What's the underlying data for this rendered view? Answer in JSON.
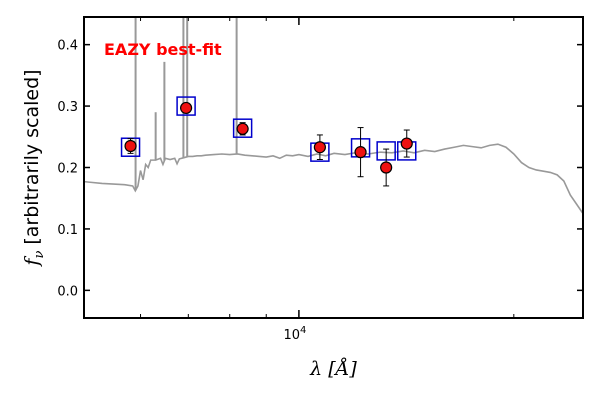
{
  "chart_data": {
    "type": "scatter",
    "title": "",
    "xlabel": "λ [Å]",
    "ylabel_symbol": "f",
    "ylabel_subscript": "ν",
    "ylabel_text": "[arbitrarily scaled]",
    "xscale": "log",
    "xlim": [
      5000,
      25000
    ],
    "ylim": [
      -0.045,
      0.445
    ],
    "yticks": [
      0.0,
      0.1,
      0.2,
      0.3,
      0.4
    ],
    "ytick_labels": [
      "0.0",
      "0.1",
      "0.2",
      "0.3",
      "0.4"
    ],
    "xticks_major": [
      10000
    ],
    "xtick_major_base": "10",
    "xtick_major_exp": "4",
    "legend_text": "EAZY best-fit",
    "legend_color": "#ff0000",
    "legend_placement": "top-left",
    "colors": {
      "template": "#999999",
      "observed_fill": "#ee1111",
      "observed_edge": "#000000",
      "model_box": "#0000cc"
    },
    "series": [
      {
        "type": "line",
        "points": [
          [
            5000,
            0.177
          ],
          [
            5100,
            0.176
          ],
          [
            5300,
            0.174
          ],
          [
            5500,
            0.173
          ],
          [
            5700,
            0.172
          ],
          [
            5850,
            0.17
          ],
          [
            5900,
            0.162
          ],
          [
            5950,
            0.17
          ],
          [
            6000,
            0.195
          ],
          [
            6050,
            0.18
          ],
          [
            6100,
            0.205
          ],
          [
            6150,
            0.2
          ],
          [
            6200,
            0.212
          ],
          [
            6300,
            0.212
          ],
          [
            6400,
            0.215
          ],
          [
            6450,
            0.205
          ],
          [
            6500,
            0.215
          ],
          [
            6600,
            0.213
          ],
          [
            6700,
            0.215
          ],
          [
            6750,
            0.206
          ],
          [
            6800,
            0.214
          ],
          [
            6900,
            0.216
          ],
          [
            7000,
            0.218
          ],
          [
            7100,
            0.218
          ],
          [
            7200,
            0.219
          ],
          [
            7300,
            0.219
          ],
          [
            7400,
            0.22
          ],
          [
            7600,
            0.221
          ],
          [
            7800,
            0.222
          ],
          [
            8000,
            0.221
          ],
          [
            8200,
            0.222
          ],
          [
            8400,
            0.22
          ],
          [
            8600,
            0.219
          ],
          [
            8800,
            0.218
          ],
          [
            9000,
            0.217
          ],
          [
            9200,
            0.219
          ],
          [
            9400,
            0.215
          ],
          [
            9600,
            0.22
          ],
          [
            9800,
            0.219
          ],
          [
            10000,
            0.221
          ],
          [
            10300,
            0.218
          ],
          [
            10600,
            0.222
          ],
          [
            10900,
            0.219
          ],
          [
            11200,
            0.223
          ],
          [
            11600,
            0.221
          ],
          [
            12000,
            0.224
          ],
          [
            12500,
            0.222
          ],
          [
            13000,
            0.225
          ],
          [
            13500,
            0.224
          ],
          [
            14000,
            0.227
          ],
          [
            14500,
            0.224
          ],
          [
            15000,
            0.228
          ],
          [
            15500,
            0.226
          ],
          [
            16000,
            0.23
          ],
          [
            16500,
            0.233
          ],
          [
            17000,
            0.236
          ],
          [
            17500,
            0.234
          ],
          [
            18000,
            0.232
          ],
          [
            18500,
            0.236
          ],
          [
            19000,
            0.238
          ],
          [
            19500,
            0.233
          ],
          [
            20000,
            0.222
          ],
          [
            20500,
            0.208
          ],
          [
            21000,
            0.2
          ],
          [
            21500,
            0.196
          ],
          [
            22000,
            0.194
          ],
          [
            22500,
            0.192
          ],
          [
            23000,
            0.188
          ],
          [
            23500,
            0.178
          ],
          [
            24000,
            0.155
          ],
          [
            24500,
            0.14
          ],
          [
            25000,
            0.125
          ]
        ],
        "emission_lines": [
          {
            "x": 5905,
            "peak": 0.445
          },
          {
            "x": 6300,
            "peak": 0.29
          },
          {
            "x": 6480,
            "peak": 0.372
          },
          {
            "x": 6890,
            "peak": 0.445
          },
          {
            "x": 6975,
            "peak": 0.445
          },
          {
            "x": 8180,
            "peak": 0.445
          }
        ]
      },
      {
        "type": "scatter",
        "marker": "square",
        "x": [
          5810,
          6950,
          8340,
          10700,
          12200,
          13250,
          14160
        ],
        "y": [
          0.233,
          0.3,
          0.264,
          0.225,
          0.232,
          0.227,
          0.227
        ]
      },
      {
        "type": "scatter",
        "marker": "circle",
        "x": [
          5810,
          6950,
          8340,
          10700,
          12200,
          13250,
          14160
        ],
        "y": [
          0.235,
          0.297,
          0.263,
          0.233,
          0.225,
          0.2,
          0.239
        ],
        "yerr": [
          0.012,
          0.008,
          0.01,
          0.02,
          0.04,
          0.03,
          0.022
        ]
      }
    ]
  }
}
